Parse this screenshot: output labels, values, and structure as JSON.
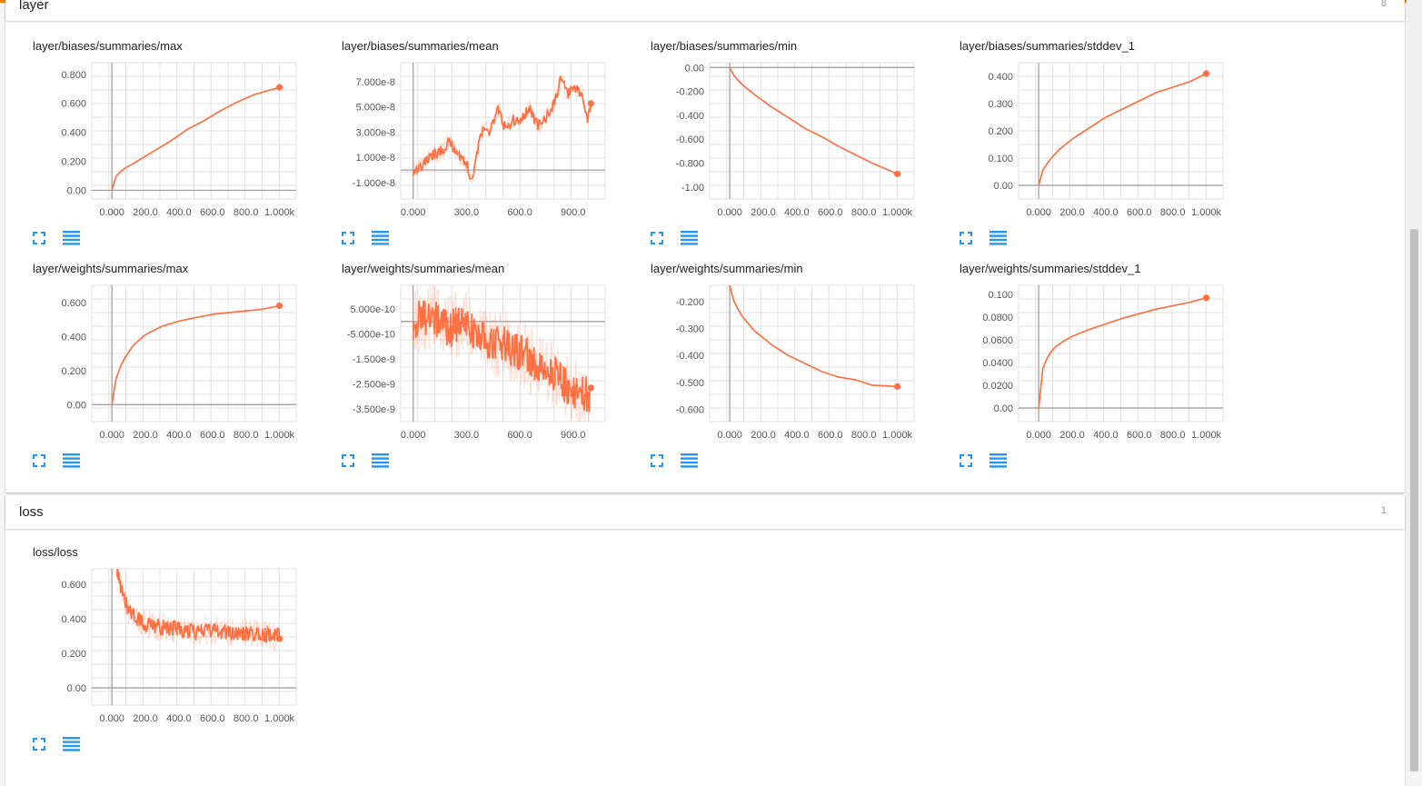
{
  "colors": {
    "line": "#ff7043",
    "accent": "#f57c00",
    "icon": "#2196f3"
  },
  "icons": {
    "expand": "fullscreen-icon",
    "data": "list-icon"
  },
  "sections": {
    "layer": {
      "title": "layer",
      "count": "8"
    },
    "loss": {
      "title": "loss",
      "count": "1"
    }
  },
  "charts": [
    {
      "section": "layer",
      "title": "layer/biases/summaries/max",
      "type": "line",
      "x_ticks": [
        "0.000",
        "200.0",
        "400.0",
        "600.0",
        "800.0",
        "1.000k"
      ],
      "x_tick_values": [
        0,
        200,
        400,
        600,
        800,
        1000
      ],
      "xlim": [
        -120,
        1100
      ],
      "y_ticks": [
        "0.00",
        "0.200",
        "0.400",
        "0.600",
        "0.800"
      ],
      "y_tick_values": [
        0,
        0.2,
        0.4,
        0.6,
        0.8
      ],
      "ylim": [
        -0.06,
        0.88
      ],
      "style": "smooth",
      "points": [
        [
          0,
          0
        ],
        [
          20,
          0.09
        ],
        [
          60,
          0.14
        ],
        [
          150,
          0.2
        ],
        [
          250,
          0.27
        ],
        [
          350,
          0.34
        ],
        [
          450,
          0.42
        ],
        [
          550,
          0.48
        ],
        [
          650,
          0.55
        ],
        [
          750,
          0.61
        ],
        [
          850,
          0.66
        ],
        [
          1000,
          0.71
        ]
      ]
    },
    {
      "section": "layer",
      "title": "layer/biases/summaries/mean",
      "type": "line",
      "x_ticks": [
        "0.000",
        "300.0",
        "600.0",
        "900.0"
      ],
      "x_tick_values": [
        0,
        300,
        600,
        900
      ],
      "xlim": [
        -70,
        1080
      ],
      "y_ticks": [
        "-1.000e-8",
        "1.000e-8",
        "3.000e-8",
        "5.000e-8",
        "7.000e-8"
      ],
      "y_tick_values": [
        -1e-08,
        1e-08,
        3e-08,
        5e-08,
        7e-08
      ],
      "ylim": [
        -2.3e-08,
        8.5e-08
      ],
      "style": "noisy",
      "points": [
        [
          0,
          0
        ],
        [
          50,
          3e-09
        ],
        [
          100,
          1.1e-08
        ],
        [
          150,
          1.4e-08
        ],
        [
          200,
          2.2e-08
        ],
        [
          250,
          1.4e-08
        ],
        [
          300,
          5e-09
        ],
        [
          330,
          -8e-09
        ],
        [
          380,
          2.8e-08
        ],
        [
          430,
          3.2e-08
        ],
        [
          480,
          4.8e-08
        ],
        [
          520,
          3.2e-08
        ],
        [
          560,
          4e-08
        ],
        [
          600,
          3.6e-08
        ],
        [
          650,
          5e-08
        ],
        [
          700,
          3.5e-08
        ],
        [
          750,
          4.2e-08
        ],
        [
          800,
          5.5e-08
        ],
        [
          830,
          7.2e-08
        ],
        [
          870,
          6e-08
        ],
        [
          900,
          6.5e-08
        ],
        [
          950,
          6e-08
        ],
        [
          980,
          4e-08
        ],
        [
          1000,
          5.3e-08
        ]
      ]
    },
    {
      "section": "layer",
      "title": "layer/biases/summaries/min",
      "type": "line",
      "x_ticks": [
        "0.000",
        "200.0",
        "400.0",
        "600.0",
        "800.0",
        "1.000k"
      ],
      "x_tick_values": [
        0,
        200,
        400,
        600,
        800,
        1000
      ],
      "xlim": [
        -120,
        1100
      ],
      "y_ticks": [
        "-1.00",
        "-0.800",
        "-0.600",
        "-0.400",
        "-0.200",
        "0.00"
      ],
      "y_tick_values": [
        -1,
        -0.8,
        -0.6,
        -0.4,
        -0.2,
        0
      ],
      "ylim": [
        -1.1,
        0.04
      ],
      "style": "smooth",
      "points": [
        [
          0,
          0
        ],
        [
          30,
          -0.08
        ],
        [
          80,
          -0.15
        ],
        [
          150,
          -0.23
        ],
        [
          250,
          -0.33
        ],
        [
          350,
          -0.42
        ],
        [
          450,
          -0.51
        ],
        [
          550,
          -0.58
        ],
        [
          650,
          -0.66
        ],
        [
          750,
          -0.73
        ],
        [
          850,
          -0.8
        ],
        [
          1000,
          -0.89
        ]
      ]
    },
    {
      "section": "layer",
      "title": "layer/biases/summaries/stddev_1",
      "type": "line",
      "x_ticks": [
        "0.000",
        "200.0",
        "400.0",
        "600.0",
        "800.0",
        "1.000k"
      ],
      "x_tick_values": [
        0,
        200,
        400,
        600,
        800,
        1000
      ],
      "xlim": [
        -120,
        1100
      ],
      "y_ticks": [
        "0.00",
        "0.100",
        "0.200",
        "0.300",
        "0.400"
      ],
      "y_tick_values": [
        0,
        0.1,
        0.2,
        0.3,
        0.4
      ],
      "ylim": [
        -0.05,
        0.45
      ],
      "style": "smooth",
      "points": [
        [
          0,
          0
        ],
        [
          20,
          0.05
        ],
        [
          60,
          0.09
        ],
        [
          120,
          0.13
        ],
        [
          200,
          0.17
        ],
        [
          300,
          0.21
        ],
        [
          400,
          0.25
        ],
        [
          500,
          0.28
        ],
        [
          600,
          0.31
        ],
        [
          700,
          0.34
        ],
        [
          800,
          0.36
        ],
        [
          900,
          0.38
        ],
        [
          1000,
          0.41
        ]
      ]
    },
    {
      "section": "layer",
      "title": "layer/weights/summaries/max",
      "type": "line",
      "x_ticks": [
        "0.000",
        "200.0",
        "400.0",
        "600.0",
        "800.0",
        "1.000k"
      ],
      "x_tick_values": [
        0,
        200,
        400,
        600,
        800,
        1000
      ],
      "xlim": [
        -120,
        1100
      ],
      "y_ticks": [
        "0.00",
        "0.200",
        "0.400",
        "0.600"
      ],
      "y_tick_values": [
        0,
        0.2,
        0.4,
        0.6
      ],
      "ylim": [
        -0.1,
        0.7
      ],
      "style": "smooth",
      "points": [
        [
          0,
          0
        ],
        [
          15,
          0.12
        ],
        [
          40,
          0.2
        ],
        [
          80,
          0.28
        ],
        [
          130,
          0.35
        ],
        [
          200,
          0.41
        ],
        [
          300,
          0.46
        ],
        [
          400,
          0.49
        ],
        [
          500,
          0.51
        ],
        [
          600,
          0.53
        ],
        [
          700,
          0.54
        ],
        [
          800,
          0.55
        ],
        [
          900,
          0.56
        ],
        [
          1000,
          0.58
        ]
      ]
    },
    {
      "section": "layer",
      "title": "layer/weights/summaries/mean",
      "type": "line",
      "x_ticks": [
        "0.000",
        "300.0",
        "600.0",
        "900.0"
      ],
      "x_tick_values": [
        0,
        300,
        600,
        900
      ],
      "xlim": [
        -70,
        1080
      ],
      "y_ticks": [
        "-3.500e-9",
        "-2.500e-9",
        "-1.500e-9",
        "-5.000e-10",
        "5.000e-10"
      ],
      "y_tick_values": [
        -3.5e-09,
        -2.5e-09,
        -1.5e-09,
        -5e-10,
        5e-10
      ],
      "ylim": [
        -4e-09,
        1.45e-09
      ],
      "style": "verynoisy",
      "points": [
        [
          0,
          0
        ],
        [
          100,
          3e-10
        ],
        [
          200,
          -3e-10
        ],
        [
          300,
          0
        ],
        [
          400,
          -8e-10
        ],
        [
          500,
          -9e-10
        ],
        [
          600,
          -1.2e-09
        ],
        [
          700,
          -1.8e-09
        ],
        [
          800,
          -2.2e-09
        ],
        [
          900,
          -2.8e-09
        ],
        [
          1000,
          -3e-09
        ]
      ]
    },
    {
      "section": "layer",
      "title": "layer/weights/summaries/min",
      "type": "line",
      "x_ticks": [
        "0.000",
        "200.0",
        "400.0",
        "600.0",
        "800.0",
        "1.000k"
      ],
      "x_tick_values": [
        0,
        200,
        400,
        600,
        800,
        1000
      ],
      "xlim": [
        -120,
        1100
      ],
      "y_ticks": [
        "-0.600",
        "-0.500",
        "-0.400",
        "-0.300",
        "-0.200"
      ],
      "y_tick_values": [
        -0.6,
        -0.5,
        -0.4,
        -0.3,
        -0.2
      ],
      "ylim": [
        -0.645,
        -0.14
      ],
      "style": "smooth",
      "points": [
        [
          0,
          -0.14
        ],
        [
          30,
          -0.21
        ],
        [
          80,
          -0.26
        ],
        [
          150,
          -0.31
        ],
        [
          250,
          -0.36
        ],
        [
          350,
          -0.4
        ],
        [
          450,
          -0.43
        ],
        [
          550,
          -0.46
        ],
        [
          650,
          -0.48
        ],
        [
          750,
          -0.49
        ],
        [
          850,
          -0.51
        ],
        [
          1000,
          -0.515
        ]
      ]
    },
    {
      "section": "layer",
      "title": "layer/weights/summaries/stddev_1",
      "type": "line",
      "x_ticks": [
        "0.000",
        "200.0",
        "400.0",
        "600.0",
        "800.0",
        "1.000k"
      ],
      "x_tick_values": [
        0,
        200,
        400,
        600,
        800,
        1000
      ],
      "xlim": [
        -120,
        1100
      ],
      "y_ticks": [
        "0.00",
        "0.0200",
        "0.0400",
        "0.0600",
        "0.0800",
        "0.100"
      ],
      "y_tick_values": [
        0,
        0.02,
        0.04,
        0.06,
        0.08,
        0.1
      ],
      "ylim": [
        -0.012,
        0.108
      ],
      "style": "smooth",
      "points": [
        [
          0,
          0
        ],
        [
          10,
          0.025
        ],
        [
          30,
          0.038
        ],
        [
          60,
          0.047
        ],
        [
          100,
          0.054
        ],
        [
          150,
          0.059
        ],
        [
          200,
          0.063
        ],
        [
          300,
          0.069
        ],
        [
          400,
          0.074
        ],
        [
          500,
          0.079
        ],
        [
          600,
          0.083
        ],
        [
          700,
          0.087
        ],
        [
          800,
          0.09
        ],
        [
          900,
          0.093
        ],
        [
          1000,
          0.097
        ]
      ]
    },
    {
      "section": "loss",
      "title": "loss/loss",
      "type": "line",
      "x_ticks": [
        "0.000",
        "200.0",
        "400.0",
        "600.0",
        "800.0",
        "1.000k"
      ],
      "x_tick_values": [
        0,
        200,
        400,
        600,
        800,
        1000
      ],
      "xlim": [
        -120,
        1100
      ],
      "y_ticks": [
        "0.00",
        "0.200",
        "0.400",
        "0.600"
      ],
      "y_tick_values": [
        0,
        0.2,
        0.4,
        0.6
      ],
      "ylim": [
        -0.1,
        0.69
      ],
      "style": "noisyloss",
      "points": [
        [
          30,
          0.69
        ],
        [
          60,
          0.55
        ],
        [
          100,
          0.45
        ],
        [
          150,
          0.4
        ],
        [
          200,
          0.37
        ],
        [
          300,
          0.35
        ],
        [
          400,
          0.34
        ],
        [
          500,
          0.33
        ],
        [
          600,
          0.33
        ],
        [
          700,
          0.32
        ],
        [
          800,
          0.32
        ],
        [
          900,
          0.31
        ],
        [
          1000,
          0.3
        ]
      ]
    }
  ]
}
